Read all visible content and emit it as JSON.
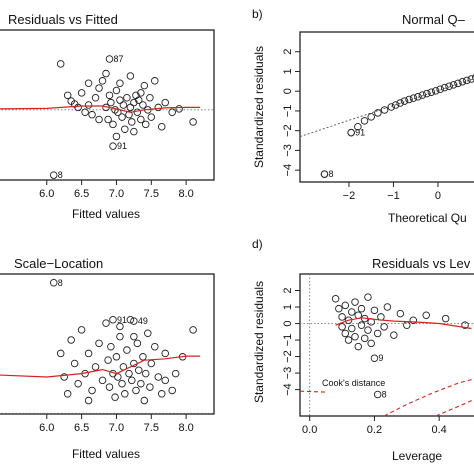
{
  "chart_data": [
    {
      "type": "scatter",
      "panel_label": "",
      "title": "Residuals vs Fitted",
      "xlabel": "Fitted values",
      "ylabel": "",
      "xlim": [
        5.3,
        8.4
      ],
      "ylim": [
        -1.45,
        1.65
      ],
      "xticks": [
        6.0,
        6.5,
        7.0,
        7.5,
        8.0
      ],
      "xtick_labels": [
        "6.0",
        "6.5",
        "7.0",
        "7.5",
        "8.0"
      ],
      "reference_line": 0,
      "points": [
        [
          6.2,
          0.95
        ],
        [
          6.3,
          0.3
        ],
        [
          6.35,
          0.18
        ],
        [
          6.4,
          0.12
        ],
        [
          6.45,
          0.05
        ],
        [
          6.5,
          0.35
        ],
        [
          6.55,
          -0.05
        ],
        [
          6.6,
          0.1
        ],
        [
          6.65,
          -0.1
        ],
        [
          6.7,
          0.25
        ],
        [
          6.75,
          0.45
        ],
        [
          6.8,
          0.6
        ],
        [
          6.85,
          0.05
        ],
        [
          6.88,
          -0.2
        ],
        [
          6.9,
          0.3
        ],
        [
          6.92,
          0.15
        ],
        [
          6.95,
          -0.3
        ],
        [
          6.98,
          0.0
        ],
        [
          7.0,
          0.4
        ],
        [
          7.02,
          -0.05
        ],
        [
          7.05,
          0.2
        ],
        [
          7.08,
          -0.15
        ],
        [
          7.1,
          0.1
        ],
        [
          7.12,
          -0.4
        ],
        [
          7.15,
          0.25
        ],
        [
          7.18,
          -0.1
        ],
        [
          7.2,
          0.05
        ],
        [
          7.22,
          -0.25
        ],
        [
          7.25,
          0.15
        ],
        [
          7.28,
          0.3
        ],
        [
          7.3,
          -0.05
        ],
        [
          7.32,
          0.2
        ],
        [
          7.35,
          -0.2
        ],
        [
          7.38,
          0.1
        ],
        [
          7.4,
          0.5
        ],
        [
          7.42,
          -0.3
        ],
        [
          7.45,
          0.0
        ],
        [
          7.48,
          0.25
        ],
        [
          7.5,
          -0.15
        ],
        [
          7.55,
          0.6
        ],
        [
          7.6,
          0.05
        ],
        [
          7.65,
          -0.35
        ],
        [
          7.7,
          0.15
        ],
        [
          7.8,
          -0.05
        ],
        [
          7.9,
          0.02
        ],
        [
          8.1,
          -0.25
        ],
        [
          6.85,
          0.75
        ],
        [
          7.0,
          -0.55
        ],
        [
          7.2,
          0.7
        ],
        [
          7.35,
          0.35
        ],
        [
          6.6,
          0.55
        ],
        [
          6.75,
          -0.2
        ],
        [
          7.05,
          0.55
        ],
        [
          7.25,
          -0.45
        ]
      ],
      "outliers": [
        {
          "label": "87",
          "x": 6.9,
          "y": 1.05
        },
        {
          "label": "91",
          "x": 6.95,
          "y": -0.75
        },
        {
          "label": "8",
          "x": 6.1,
          "y": -1.35
        }
      ],
      "smooth": [
        [
          5.3,
          0.02
        ],
        [
          6.0,
          0.03
        ],
        [
          6.5,
          0.08
        ],
        [
          6.8,
          0.08
        ],
        [
          7.0,
          0.02
        ],
        [
          7.2,
          -0.05
        ],
        [
          7.4,
          0.0
        ],
        [
          7.7,
          0.04
        ],
        [
          8.0,
          0.05
        ],
        [
          8.2,
          0.05
        ]
      ]
    },
    {
      "type": "scatter",
      "panel_label": "b)",
      "title": "Normal Q–",
      "xlabel": "Theoretical Qu",
      "ylabel": "Standardized residuals",
      "xlim": [
        -3.1,
        0.9
      ],
      "ylim": [
        -4.6,
        3.0
      ],
      "xticks": [
        -2,
        -1,
        0
      ],
      "xtick_labels": [
        "−2",
        "−1",
        "0"
      ],
      "yticks": [
        -4,
        -3,
        -2,
        -1,
        0,
        1,
        2
      ],
      "ytick_labels": [
        "−4",
        "−3",
        "−2",
        "−1",
        "0",
        "1",
        "2"
      ],
      "points": [
        [
          -2.55,
          -4.2
        ],
        [
          -1.95,
          -2.1
        ],
        [
          -1.8,
          -1.8
        ],
        [
          -1.65,
          -1.5
        ],
        [
          -1.5,
          -1.3
        ],
        [
          -1.35,
          -1.1
        ],
        [
          -1.2,
          -0.95
        ],
        [
          -1.05,
          -0.8
        ],
        [
          -0.95,
          -0.7
        ],
        [
          -0.85,
          -0.6
        ],
        [
          -0.75,
          -0.5
        ],
        [
          -0.65,
          -0.42
        ],
        [
          -0.55,
          -0.35
        ],
        [
          -0.45,
          -0.28
        ],
        [
          -0.35,
          -0.2
        ],
        [
          -0.25,
          -0.12
        ],
        [
          -0.15,
          -0.05
        ],
        [
          -0.05,
          0.02
        ],
        [
          0.05,
          0.1
        ],
        [
          0.15,
          0.18
        ],
        [
          0.25,
          0.25
        ],
        [
          0.35,
          0.32
        ],
        [
          0.45,
          0.4
        ],
        [
          0.55,
          0.48
        ],
        [
          0.65,
          0.55
        ],
        [
          0.75,
          0.62
        ],
        [
          0.85,
          0.7
        ]
      ],
      "outliers": [
        {
          "label": "91",
          "x": -1.95,
          "y": -2.1
        },
        {
          "label": "8",
          "x": -2.55,
          "y": -4.2
        }
      ],
      "qq_line": [
        [
          -3.1,
          -2.3
        ],
        [
          0.9,
          0.7
        ]
      ]
    },
    {
      "type": "scatter",
      "panel_label": "",
      "title": "Scale−Location",
      "xlabel": "Fitted values",
      "ylabel": "",
      "xlim": [
        5.3,
        8.4
      ],
      "ylim": [
        0.0,
        2.08
      ],
      "xticks": [
        6.0,
        6.5,
        7.0,
        7.5,
        8.0
      ],
      "xtick_labels": [
        "6.0",
        "6.5",
        "7.0",
        "7.5",
        "8.0"
      ],
      "reference_line": 0.01,
      "points": [
        [
          6.2,
          0.9
        ],
        [
          6.25,
          0.55
        ],
        [
          6.3,
          0.3
        ],
        [
          6.35,
          1.1
        ],
        [
          6.4,
          0.75
        ],
        [
          6.45,
          0.45
        ],
        [
          6.5,
          1.25
        ],
        [
          6.55,
          0.6
        ],
        [
          6.6,
          0.9
        ],
        [
          6.65,
          0.35
        ],
        [
          6.7,
          0.7
        ],
        [
          6.75,
          1.05
        ],
        [
          6.8,
          0.5
        ],
        [
          6.85,
          1.35
        ],
        [
          6.88,
          0.8
        ],
        [
          6.9,
          0.4
        ],
        [
          6.92,
          1.0
        ],
        [
          6.95,
          0.6
        ],
        [
          6.98,
          0.25
        ],
        [
          7.0,
          0.85
        ],
        [
          7.02,
          0.55
        ],
        [
          7.05,
          1.15
        ],
        [
          7.08,
          0.45
        ],
        [
          7.1,
          0.7
        ],
        [
          7.12,
          0.3
        ],
        [
          7.15,
          0.95
        ],
        [
          7.18,
          0.6
        ],
        [
          7.2,
          1.4
        ],
        [
          7.22,
          0.5
        ],
        [
          7.25,
          0.75
        ],
        [
          7.28,
          0.35
        ],
        [
          7.3,
          1.05
        ],
        [
          7.32,
          0.65
        ],
        [
          7.35,
          0.45
        ],
        [
          7.38,
          0.85
        ],
        [
          7.4,
          0.2
        ],
        [
          7.42,
          0.6
        ],
        [
          7.45,
          1.2
        ],
        [
          7.48,
          0.4
        ],
        [
          7.5,
          0.75
        ],
        [
          7.55,
          1.0
        ],
        [
          7.6,
          0.55
        ],
        [
          7.65,
          0.3
        ],
        [
          7.7,
          0.9
        ],
        [
          7.8,
          0.35
        ],
        [
          7.85,
          0.6
        ],
        [
          7.95,
          0.85
        ],
        [
          8.1,
          1.25
        ],
        [
          6.6,
          0.2
        ],
        [
          7.05,
          1.3
        ],
        [
          7.25,
          1.15
        ],
        [
          7.7,
          0.5
        ]
      ],
      "outliers": [
        {
          "label": "8",
          "x": 6.1,
          "y": 1.95
        },
        {
          "label": "91",
          "x": 6.95,
          "y": 1.4
        },
        {
          "label": "49",
          "x": 7.25,
          "y": 1.38
        }
      ],
      "smooth": [
        [
          5.3,
          0.58
        ],
        [
          6.0,
          0.55
        ],
        [
          6.5,
          0.6
        ],
        [
          6.8,
          0.66
        ],
        [
          7.0,
          0.6
        ],
        [
          7.2,
          0.7
        ],
        [
          7.4,
          0.8
        ],
        [
          7.7,
          0.82
        ],
        [
          8.0,
          0.86
        ],
        [
          8.2,
          0.86
        ]
      ]
    },
    {
      "type": "scatter",
      "panel_label": "d)",
      "title": "Residuals vs Lev",
      "xlabel": "Leverage",
      "ylabel": "Standardized residuals",
      "xlim": [
        -0.03,
        0.52
      ],
      "ylim": [
        -5.6,
        3.0
      ],
      "xticks": [
        0.0,
        0.2,
        0.4
      ],
      "xtick_labels": [
        "0.0",
        "0.2",
        "0.4"
      ],
      "yticks": [
        -4,
        -3,
        -2,
        -1,
        0,
        1,
        2
      ],
      "ytick_labels": [
        "−4",
        "−3",
        "−2",
        "−1",
        "0",
        "1",
        "2"
      ],
      "reference_line": 0,
      "points": [
        [
          0.08,
          1.5
        ],
        [
          0.09,
          0.9
        ],
        [
          0.1,
          0.4
        ],
        [
          0.1,
          -0.2
        ],
        [
          0.11,
          1.1
        ],
        [
          0.11,
          -0.6
        ],
        [
          0.12,
          0.2
        ],
        [
          0.12,
          -1.0
        ],
        [
          0.13,
          0.7
        ],
        [
          0.13,
          -0.3
        ],
        [
          0.14,
          1.3
        ],
        [
          0.14,
          -0.8
        ],
        [
          0.15,
          0.5
        ],
        [
          0.15,
          -1.4
        ],
        [
          0.16,
          0.9
        ],
        [
          0.16,
          -0.1
        ],
        [
          0.17,
          0.3
        ],
        [
          0.17,
          -0.9
        ],
        [
          0.18,
          1.6
        ],
        [
          0.18,
          -0.4
        ],
        [
          0.19,
          0.1
        ],
        [
          0.19,
          -1.2
        ],
        [
          0.2,
          0.8
        ],
        [
          0.21,
          -0.6
        ],
        [
          0.22,
          0.4
        ],
        [
          0.23,
          -0.2
        ],
        [
          0.24,
          1.0
        ],
        [
          0.26,
          -0.7
        ],
        [
          0.28,
          0.6
        ],
        [
          0.3,
          -0.1
        ],
        [
          0.32,
          0.2
        ],
        [
          0.36,
          0.5
        ],
        [
          0.42,
          0.3
        ],
        [
          0.48,
          -0.1
        ]
      ],
      "outliers": [
        {
          "label": "9",
          "x": 0.2,
          "y": -2.1
        },
        {
          "label": "8",
          "x": 0.21,
          "y": -4.3
        }
      ],
      "smooth": [
        [
          0.08,
          -0.1
        ],
        [
          0.12,
          0.2
        ],
        [
          0.16,
          0.35
        ],
        [
          0.2,
          0.25
        ],
        [
          0.26,
          0.15
        ],
        [
          0.32,
          0.1
        ],
        [
          0.4,
          0.0
        ],
        [
          0.5,
          -0.3
        ]
      ],
      "cooks_distance_label": "Cook's distance",
      "cooks_curves": [
        [
          [
            -0.03,
            -4.1
          ],
          [
            0.05,
            -4.15
          ]
        ],
        [
          [
            0.23,
            -5.6
          ],
          [
            0.3,
            -4.9
          ],
          [
            0.38,
            -4.2
          ],
          [
            0.46,
            -3.6
          ],
          [
            0.52,
            -3.3
          ]
        ],
        [
          [
            0.39,
            -5.6
          ],
          [
            0.45,
            -5.1
          ],
          [
            0.52,
            -4.5
          ]
        ]
      ]
    }
  ]
}
